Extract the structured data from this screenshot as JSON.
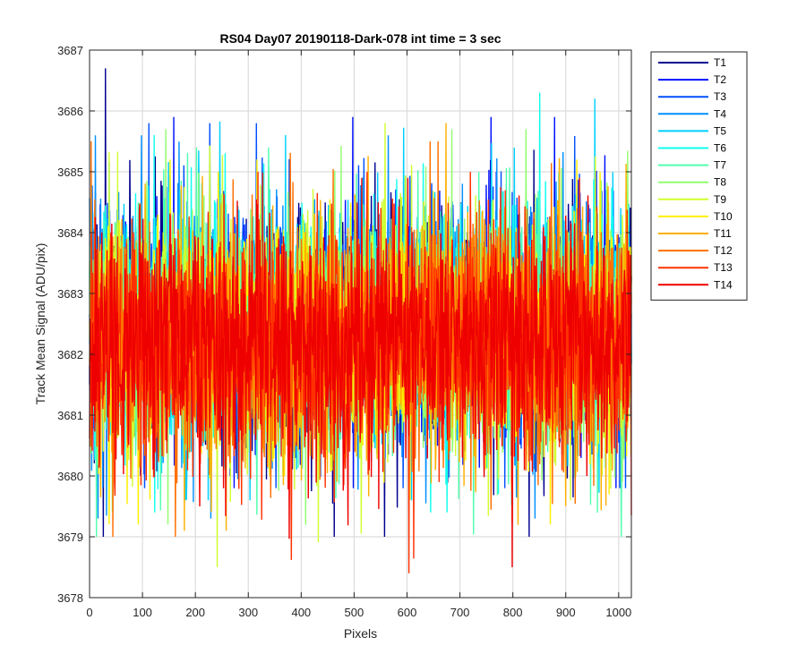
{
  "chart_data": {
    "type": "line",
    "title": "RS04 Day07 20190118-Dark-078 int time = 3 sec",
    "xlabel": "Pixels",
    "ylabel": "Track Mean Signal (ADU/pix)",
    "xlim": [
      0,
      1024
    ],
    "ylim": [
      3678,
      3687
    ],
    "xticks": [
      0,
      100,
      200,
      300,
      400,
      500,
      600,
      700,
      800,
      900,
      1000
    ],
    "yticks": [
      3678,
      3679,
      3680,
      3681,
      3682,
      3683,
      3684,
      3685,
      3686,
      3687
    ],
    "grid": true,
    "legend_position": "outside-right-top",
    "n_points": 1024,
    "series": [
      {
        "name": "T1",
        "color": "#00008F",
        "mean": 3682.5,
        "spread": 0.95,
        "min": 3679.0,
        "max": 3686.7
      },
      {
        "name": "T2",
        "color": "#0010FF",
        "mean": 3682.5,
        "spread": 0.95,
        "min": 3679.8,
        "max": 3685.9
      },
      {
        "name": "T3",
        "color": "#0050FF",
        "mean": 3682.5,
        "spread": 0.95,
        "min": 3679.8,
        "max": 3685.8
      },
      {
        "name": "T4",
        "color": "#0090FF",
        "mean": 3682.5,
        "spread": 0.95,
        "min": 3679.3,
        "max": 3685.6
      },
      {
        "name": "T5",
        "color": "#00D0FF",
        "mean": 3682.5,
        "spread": 0.95,
        "min": 3679.6,
        "max": 3686.2
      },
      {
        "name": "T6",
        "color": "#10FFEF",
        "mean": 3682.5,
        "spread": 0.95,
        "min": 3679.4,
        "max": 3686.3
      },
      {
        "name": "T7",
        "color": "#50FFAF",
        "mean": 3682.4,
        "spread": 0.95,
        "min": 3679.0,
        "max": 3685.4
      },
      {
        "name": "T8",
        "color": "#90FF6F",
        "mean": 3682.4,
        "spread": 0.95,
        "min": 3679.2,
        "max": 3685.7
      },
      {
        "name": "T9",
        "color": "#D0FF2F",
        "mean": 3682.3,
        "spread": 0.95,
        "min": 3678.5,
        "max": 3685.8
      },
      {
        "name": "T10",
        "color": "#FFEF00",
        "mean": 3682.3,
        "spread": 0.95,
        "min": 3679.2,
        "max": 3685.2
      },
      {
        "name": "T11",
        "color": "#FFAF00",
        "mean": 3682.2,
        "spread": 0.95,
        "min": 3679.1,
        "max": 3685.8
      },
      {
        "name": "T12",
        "color": "#FF6F00",
        "mean": 3682.2,
        "spread": 0.95,
        "min": 3679.0,
        "max": 3685.5
      },
      {
        "name": "T13",
        "color": "#FF3000",
        "mean": 3682.2,
        "spread": 0.95,
        "min": 3678.4,
        "max": 3685.0
      },
      {
        "name": "T14",
        "color": "#EF0000",
        "mean": 3682.2,
        "spread": 0.95,
        "min": 3678.5,
        "max": 3684.9
      }
    ]
  }
}
